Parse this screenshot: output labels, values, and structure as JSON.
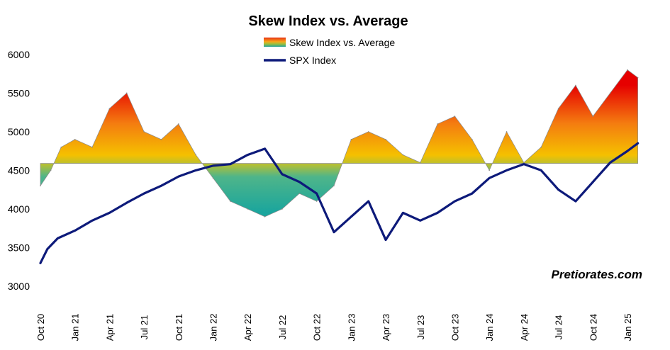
{
  "chart_data": {
    "type": "line",
    "title": "Skew Index vs. Average",
    "watermark": "Pretiorates.com",
    "legend": [
      {
        "name": "Skew Index vs. Average",
        "kind": "area-gradient"
      },
      {
        "name": "SPX Index",
        "kind": "line"
      }
    ],
    "ylim": [
      3000,
      6200
    ],
    "yticks": [
      3000,
      3500,
      4000,
      4500,
      5000,
      5500,
      6000
    ],
    "baseline": 4590,
    "xticks": [
      "Oct 20",
      "Jan 21",
      "Apr 21",
      "Jul 21",
      "Oct 21",
      "Jan 22",
      "Apr 22",
      "Jul 22",
      "Oct 22",
      "Jan 23",
      "Apr 23",
      "Jul 23",
      "Oct 23",
      "Jan 24",
      "Apr 24",
      "Jul 24",
      "Oct 24",
      "Jan 25"
    ],
    "series": [
      {
        "name": "SPX Index",
        "color": "#0d1a7a",
        "x": [
          0.0,
          0.2,
          0.5,
          1.0,
          1.5,
          2.0,
          2.5,
          3.0,
          3.5,
          4.0,
          4.5,
          5.0,
          5.5,
          6.0,
          6.5,
          7.0,
          7.5,
          8.0,
          8.5,
          9.0,
          9.5,
          10.0,
          10.5,
          11.0,
          11.5,
          12.0,
          12.5,
          13.0,
          13.5,
          14.0,
          14.5,
          15.0,
          15.5,
          16.0,
          16.5,
          17.0,
          17.3
        ],
        "values": [
          3300,
          3480,
          3620,
          3720,
          3850,
          3950,
          4080,
          4200,
          4300,
          4420,
          4500,
          4560,
          4580,
          4700,
          4780,
          4450,
          4350,
          4200,
          3700,
          3900,
          4100,
          3600,
          3950,
          3850,
          3950,
          4100,
          4200,
          4400,
          4500,
          4580,
          4500,
          4250,
          4100,
          4350,
          4600,
          4750,
          4850
        ]
      },
      {
        "name": "Skew Index vs. Average",
        "x": [
          0.0,
          0.3,
          0.6,
          1.0,
          1.5,
          2.0,
          2.5,
          3.0,
          3.5,
          4.0,
          4.5,
          5.0,
          5.5,
          6.0,
          6.5,
          7.0,
          7.5,
          8.0,
          8.5,
          9.0,
          9.5,
          10.0,
          10.5,
          11.0,
          11.5,
          12.0,
          12.5,
          13.0,
          13.5,
          14.0,
          14.5,
          15.0,
          15.5,
          16.0,
          16.5,
          17.0,
          17.3
        ],
        "values": [
          4300,
          4500,
          4800,
          4900,
          4800,
          5300,
          5500,
          5000,
          4900,
          5100,
          4700,
          4400,
          4100,
          4000,
          3900,
          4000,
          4200,
          4100,
          4300,
          4900,
          5000,
          4900,
          4700,
          4600,
          5100,
          5200,
          4900,
          4500,
          5000,
          4600,
          4800,
          5300,
          5600,
          5200,
          5500,
          5800,
          5700
        ]
      }
    ]
  }
}
